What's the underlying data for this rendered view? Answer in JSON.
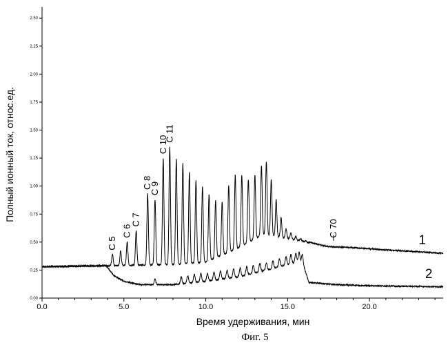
{
  "chart_data": {
    "type": "line",
    "xlabel": "Время удерживания, мин",
    "ylabel": "Полный ионный ток, относ.ед.",
    "xlim": [
      0,
      24.5
    ],
    "ylim": [
      0,
      2.6
    ],
    "x_ticks": [
      0.0,
      5.0,
      10.0,
      15.0,
      20.0
    ],
    "x_tick_labels": [
      "0.0",
      "5.0",
      "10.0",
      "15.0",
      "20.0"
    ],
    "y_ticks": [
      0.0,
      0.25,
      0.5,
      0.75,
      1.0,
      1.25,
      1.5,
      1.75,
      2.0,
      2.25,
      2.5
    ],
    "y_tick_labels": [
      "0.00",
      "0.25",
      "0.50",
      "0.75",
      "1.00",
      "1.25",
      "1.50",
      "1.75",
      "2.00",
      "2.25",
      "2.50"
    ],
    "grid": false,
    "series": [
      {
        "name": "1",
        "baseline": [
          [
            0,
            0.28
          ],
          [
            4.0,
            0.29
          ],
          [
            8,
            0.3
          ],
          [
            10,
            0.32
          ],
          [
            12,
            0.45
          ],
          [
            13.5,
            0.57
          ],
          [
            15.5,
            0.52
          ],
          [
            17.5,
            0.46
          ],
          [
            19,
            0.45
          ],
          [
            21,
            0.43
          ],
          [
            24.5,
            0.4
          ]
        ],
        "peaks": [
          [
            4.3,
            0.39
          ],
          [
            4.8,
            0.42
          ],
          [
            5.2,
            0.5
          ],
          [
            5.75,
            0.6
          ],
          [
            6.45,
            0.93
          ],
          [
            6.9,
            0.88
          ],
          [
            7.4,
            1.25
          ],
          [
            7.8,
            1.35
          ],
          [
            8.2,
            1.24
          ],
          [
            8.6,
            1.2
          ],
          [
            9.0,
            1.12
          ],
          [
            9.4,
            1.05
          ],
          [
            9.8,
            1.0
          ],
          [
            10.2,
            0.93
          ],
          [
            10.6,
            0.87
          ],
          [
            11.0,
            0.86
          ],
          [
            11.4,
            1.0
          ],
          [
            11.8,
            1.1
          ],
          [
            12.2,
            1.1
          ],
          [
            12.6,
            1.06
          ],
          [
            13.0,
            1.1
          ],
          [
            13.4,
            1.18
          ],
          [
            13.7,
            1.22
          ],
          [
            14.0,
            1.06
          ],
          [
            14.3,
            0.88
          ],
          [
            14.6,
            0.72
          ],
          [
            14.9,
            0.62
          ],
          [
            15.2,
            0.58
          ],
          [
            15.5,
            0.55
          ],
          [
            15.8,
            0.53
          ],
          [
            16.1,
            0.51
          ],
          [
            16.4,
            0.5
          ],
          [
            16.7,
            0.49
          ]
        ]
      },
      {
        "name": "2",
        "baseline": [
          [
            0,
            0.28
          ],
          [
            3.9,
            0.29
          ],
          [
            4.4,
            0.2
          ],
          [
            5.0,
            0.15
          ],
          [
            6.0,
            0.12
          ],
          [
            8.0,
            0.12
          ],
          [
            10,
            0.15
          ],
          [
            12,
            0.19
          ],
          [
            14,
            0.26
          ],
          [
            15.5,
            0.32
          ],
          [
            15.9,
            0.32
          ],
          [
            16.3,
            0.14
          ],
          [
            18,
            0.12
          ],
          [
            20,
            0.11
          ],
          [
            24.5,
            0.1
          ]
        ],
        "peaks": [
          [
            6.9,
            0.17
          ],
          [
            8.5,
            0.19
          ],
          [
            8.9,
            0.2
          ],
          [
            9.3,
            0.21
          ],
          [
            9.7,
            0.22
          ],
          [
            10.1,
            0.22
          ],
          [
            10.5,
            0.23
          ],
          [
            10.9,
            0.24
          ],
          [
            11.3,
            0.25
          ],
          [
            11.7,
            0.26
          ],
          [
            12.1,
            0.27
          ],
          [
            12.5,
            0.28
          ],
          [
            12.9,
            0.29
          ],
          [
            13.3,
            0.31
          ],
          [
            13.7,
            0.31
          ],
          [
            14.1,
            0.33
          ],
          [
            14.5,
            0.35
          ],
          [
            14.9,
            0.37
          ],
          [
            15.2,
            0.39
          ],
          [
            15.5,
            0.4
          ],
          [
            15.7,
            0.41
          ],
          [
            15.9,
            0.39
          ]
        ]
      }
    ],
    "annotations": [
      {
        "text": "C 5",
        "x": 4.3,
        "y": 0.39
      },
      {
        "text": "C 6",
        "x": 5.2,
        "y": 0.5
      },
      {
        "text": "C 7",
        "x": 5.75,
        "y": 0.6
      },
      {
        "text": "C 8",
        "x": 6.45,
        "y": 0.93
      },
      {
        "text": "C 9",
        "x": 6.9,
        "y": 0.88
      },
      {
        "text": "C 10",
        "x": 7.4,
        "y": 1.25
      },
      {
        "text": "C 11",
        "x": 7.8,
        "y": 1.35
      },
      {
        "text": "C 70",
        "x": 17.8,
        "y": 0.5
      }
    ],
    "series_labels": [
      {
        "text": "1",
        "x": 23.0,
        "y": 0.48
      },
      {
        "text": "2",
        "x": 23.4,
        "y": 0.18
      }
    ],
    "caption": "Фиг. 5"
  }
}
